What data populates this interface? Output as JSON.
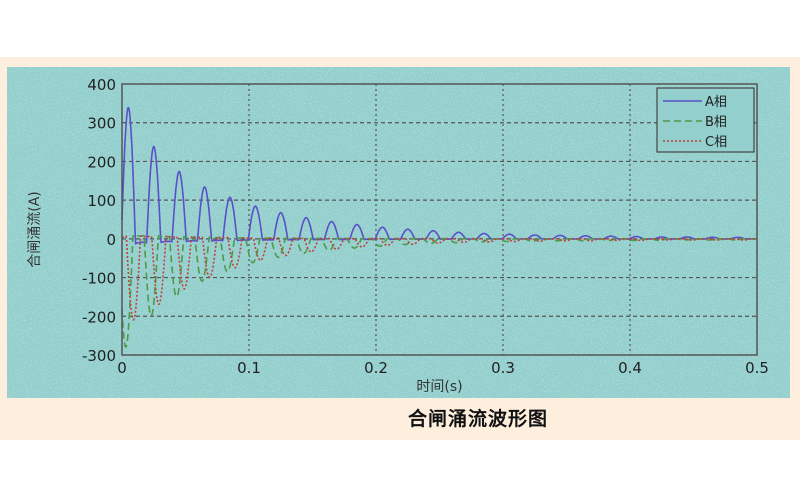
{
  "caption": "合闸涌流波形图",
  "chart_data": {
    "type": "line",
    "title": "",
    "xlabel": "时间(s)",
    "ylabel": "合闸涌流(A)",
    "xlim": [
      0,
      0.5
    ],
    "ylim": [
      -300,
      400
    ],
    "xticks": [
      "0",
      "0.1",
      "0.2",
      "0.3",
      "0.4",
      "0.5"
    ],
    "xtick_values": [
      0,
      0.1,
      0.2,
      0.3,
      0.4,
      0.5
    ],
    "yticks": [
      "400",
      "300",
      "200",
      "100",
      "0",
      "-100",
      "-200",
      "-300"
    ],
    "ytick_values": [
      400,
      300,
      200,
      100,
      0,
      -100,
      -200,
      -300
    ],
    "grid": true,
    "legend_position": "top-right",
    "background_color": "#93cfcd",
    "series": [
      {
        "name": "A相",
        "color": "#5a50c8",
        "style": "solid",
        "first_peak_time": 0.005,
        "period": 0.02,
        "peak_values": [
          340,
          240,
          175,
          135,
          108,
          85,
          68,
          55,
          45,
          37,
          30,
          25,
          21,
          17,
          14,
          12,
          10,
          9,
          8,
          7,
          6,
          5,
          5,
          4,
          4
        ]
      },
      {
        "name": "B相",
        "color": "#4f9a48",
        "style": "dashed",
        "first_peak_time": 0.003,
        "period": 0.02,
        "peak_values": [
          -280,
          -200,
          -150,
          -110,
          -85,
          -62,
          -48,
          -38,
          -30,
          -24,
          -19,
          -15,
          -12,
          -10,
          -8,
          -7,
          -6,
          -5,
          -5,
          -4,
          -4,
          -4,
          -3,
          -3,
          -3
        ]
      },
      {
        "name": "C相",
        "color": "#c0403c",
        "style": "dotted",
        "first_peak_time": 0.009,
        "period": 0.02,
        "peak_values": [
          -210,
          -170,
          -130,
          -100,
          -75,
          -56,
          -43,
          -34,
          -27,
          -21,
          -17,
          -14,
          -11,
          -9,
          -8,
          -7,
          -6,
          -5,
          -5,
          -4,
          -4,
          -3,
          -3,
          -3,
          -3
        ]
      }
    ]
  }
}
